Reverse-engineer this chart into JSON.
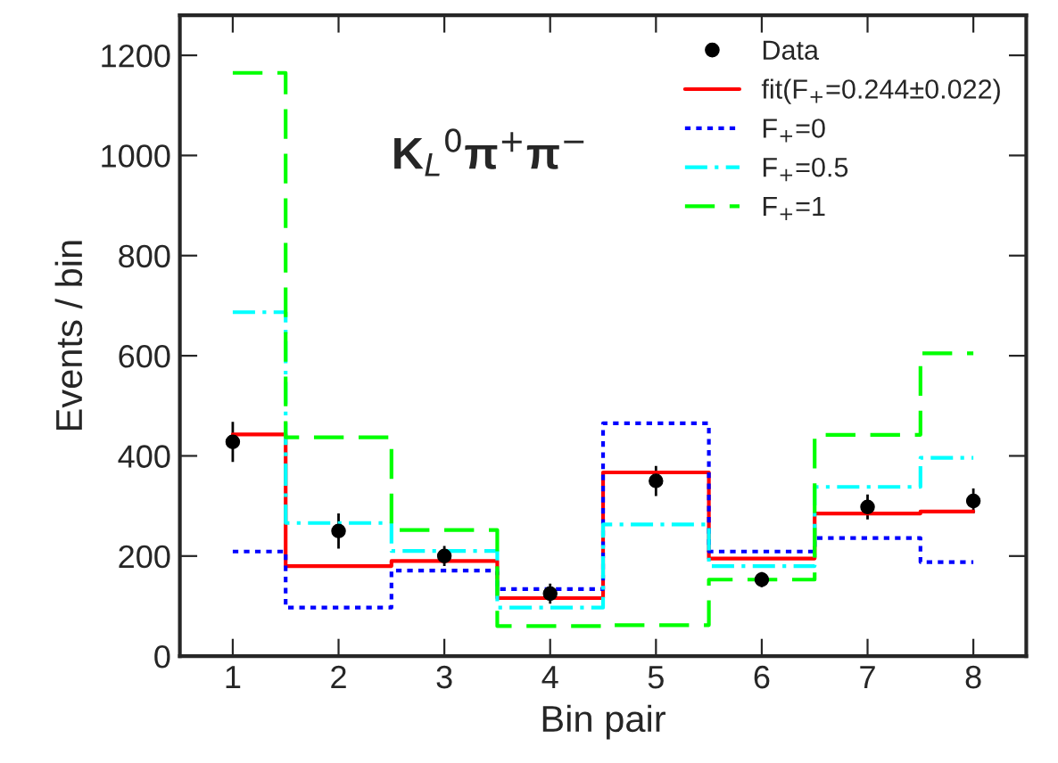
{
  "chart_data": {
    "type": "step",
    "xlabel": "Bin pair",
    "ylabel": "Events / bin",
    "x": [
      1,
      2,
      3,
      4,
      5,
      6,
      7,
      8
    ],
    "xlim": [
      0.5,
      8.5
    ],
    "xticks": [
      1,
      2,
      3,
      4,
      5,
      6,
      7,
      8
    ],
    "ylim": [
      0,
      1280
    ],
    "yticks": [
      0,
      200,
      400,
      600,
      800,
      1000,
      1200
    ],
    "grid": false,
    "legend": "top right",
    "annotations": [
      "K$_{L}$$^{0}$π$^{+}$π$^{−}$"
    ],
    "series": [
      {
        "name": "Data",
        "type": "scatter",
        "marker": "circle",
        "color": "#000000",
        "values": [
          428,
          250,
          200,
          125,
          350,
          153,
          298,
          310
        ],
        "errors": [
          40,
          35,
          20,
          20,
          30,
          15,
          25,
          25
        ]
      },
      {
        "name": "fit(F$_{+}$=0.244±0.022)",
        "line_style": "solid",
        "color": "#ff0000",
        "values": [
          443,
          180,
          190,
          116,
          367,
          195,
          285,
          289
        ]
      },
      {
        "name": "F$_{+}$=0",
        "line_style": "dotted",
        "color": "#0000ff",
        "values": [
          209,
          97,
          171,
          134,
          465,
          209,
          236,
          188
        ]
      },
      {
        "name": "F$_{+}$=0.5",
        "line_style": "dashdot",
        "color": "#00ffff",
        "values": [
          687,
          266,
          210,
          97,
          263,
          180,
          338,
          396
        ]
      },
      {
        "name": "F$_{+}$=1",
        "line_style": "dashed",
        "color": "#00ff00",
        "values": [
          1165,
          437,
          252,
          60,
          62,
          153,
          442,
          605
        ]
      }
    ]
  }
}
